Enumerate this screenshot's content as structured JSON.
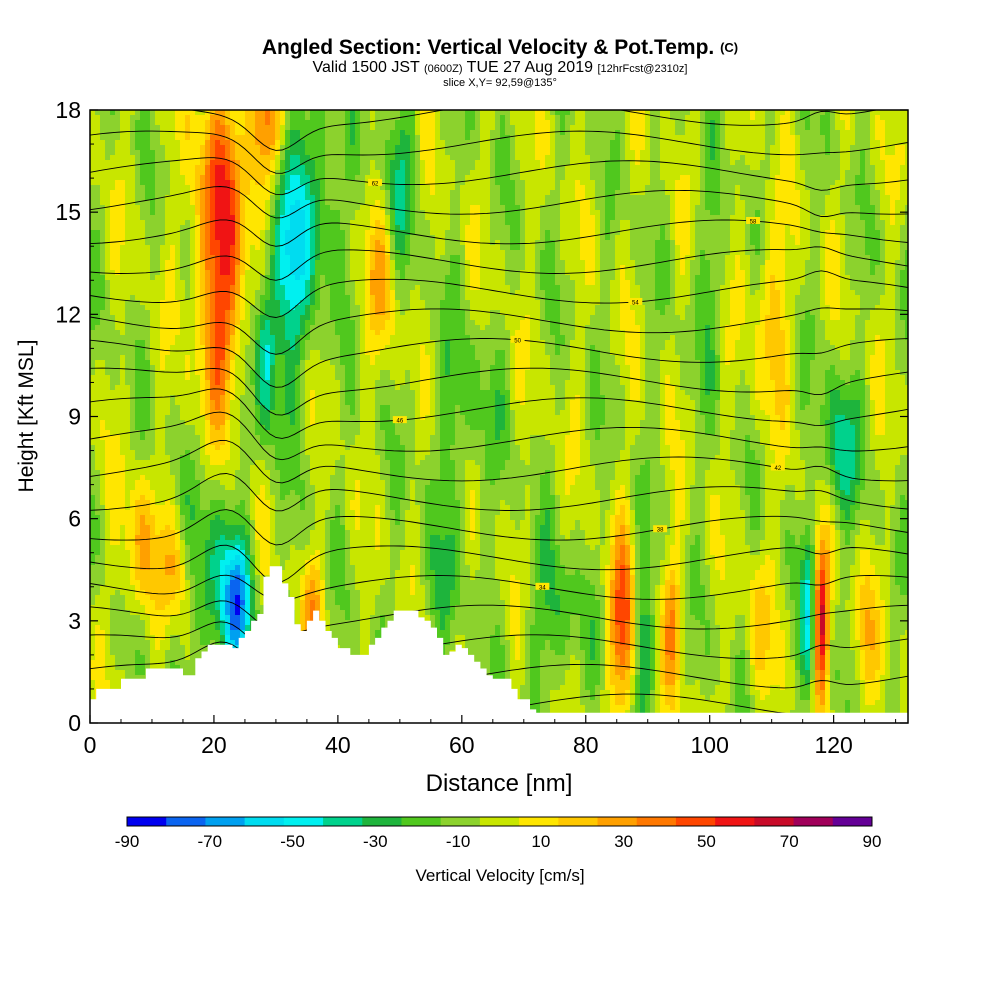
{
  "title": {
    "main": "Angled Section: Vertical Velocity & Pot.Temp.",
    "copyright": "(C)"
  },
  "subtitle": {
    "valid_a": "Valid 1500 JST",
    "utc": "(0600Z)",
    "valid_b": "TUE 27 Aug 2019",
    "forecast": "[12hrFcst@2310z]"
  },
  "slice_label": "slice X,Y= 92,59@135°",
  "chart_data": {
    "type": "heatmap",
    "xlabel": "Distance [nm]",
    "ylabel": "Height [Kft MSL]",
    "xlim": [
      0,
      132
    ],
    "ylim": [
      0,
      18
    ],
    "x_ticks": [
      0,
      20,
      40,
      60,
      80,
      100,
      120
    ],
    "y_ticks": [
      0,
      3,
      6,
      9,
      12,
      15,
      18
    ],
    "colorbar": {
      "label": "Vertical Velocity [cm/s]",
      "tick_labels": [
        -90,
        -70,
        -50,
        -30,
        -10,
        10,
        30,
        50,
        70,
        90
      ],
      "levels": [
        -90,
        -80,
        -70,
        -60,
        -50,
        -40,
        -30,
        -20,
        -10,
        0,
        10,
        20,
        30,
        40,
        50,
        60,
        70,
        80,
        90
      ],
      "colors": [
        "#0000f0",
        "#0a64f0",
        "#00a0f0",
        "#00dcf0",
        "#00f0f0",
        "#00d28c",
        "#1eb43c",
        "#50c81e",
        "#8cd22d",
        "#c8e600",
        "#ffe600",
        "#ffc800",
        "#ffa000",
        "#ff7800",
        "#ff4600",
        "#f01414",
        "#c80a28",
        "#a0005a",
        "#640096"
      ]
    },
    "terrain": {
      "description": "white terrain blocks",
      "x": [
        0,
        1,
        5,
        9,
        13,
        15,
        17,
        18,
        19,
        21,
        23,
        24,
        25,
        26,
        27,
        28,
        29,
        30,
        31,
        32,
        33,
        34,
        35,
        36,
        37,
        38,
        39,
        40,
        41,
        42,
        43,
        44,
        45,
        46,
        47,
        48,
        49,
        50,
        51,
        52,
        53,
        54,
        55,
        56,
        57,
        58,
        59,
        60,
        61,
        62,
        63,
        64,
        65,
        66,
        67,
        68,
        69,
        70,
        71,
        72,
        80,
        90,
        100,
        110,
        120,
        132
      ],
      "height_kft": [
        0.7,
        1.0,
        1.3,
        1.6,
        1.6,
        1.4,
        1.9,
        2.1,
        2.3,
        2.3,
        2.2,
        2.5,
        2.7,
        3.0,
        3.2,
        4.3,
        4.6,
        4.6,
        4.1,
        3.7,
        2.9,
        2.7,
        3.0,
        3.3,
        3.0,
        2.7,
        2.5,
        2.2,
        2.2,
        2.0,
        2.0,
        2.0,
        2.3,
        2.5,
        2.8,
        3.0,
        3.3,
        3.3,
        3.3,
        3.3,
        3.1,
        3.0,
        2.8,
        2.5,
        2.0,
        2.1,
        2.3,
        2.2,
        2.0,
        1.8,
        1.6,
        1.4,
        1.3,
        1.3,
        1.3,
        1.0,
        0.7,
        0.7,
        0.4,
        0.3,
        0.3,
        0.3,
        0.3,
        0.3,
        0.3,
        0.3
      ]
    },
    "theta_contours_C": {
      "base_levels": [
        26,
        28,
        30,
        32,
        34,
        36,
        38,
        40,
        42,
        44,
        46,
        48,
        50,
        52,
        54,
        56,
        58,
        60,
        62,
        64,
        66
      ],
      "contour_labels_visible": [
        "26",
        "30",
        "34",
        "38",
        "42",
        "46",
        "50",
        "54",
        "58",
        "62",
        "66"
      ]
    },
    "velocity_features": [
      {
        "x": 21,
        "y": 15.0,
        "value": 55,
        "sx": 3.0,
        "sy": 2.5
      },
      {
        "x": 21,
        "y": 11.0,
        "value": 35,
        "sx": 2.2,
        "sy": 1.8
      },
      {
        "x": 28,
        "y": 17.5,
        "value": 50,
        "sx": 1.8,
        "sy": 1.6
      },
      {
        "x": 32,
        "y": 13.5,
        "value": -45,
        "sx": 2.2,
        "sy": 2.5
      },
      {
        "x": 28.5,
        "y": 10.8,
        "value": -40,
        "sx": 1.2,
        "sy": 1.6
      },
      {
        "x": 37,
        "y": 15.5,
        "value": -25,
        "sx": 3.0,
        "sy": 2.2
      },
      {
        "x": 24,
        "y": 3.5,
        "value": -55,
        "sx": 1.6,
        "sy": 1.3
      },
      {
        "x": 20,
        "y": 4.0,
        "value": -30,
        "sx": 3.0,
        "sy": 2.0
      },
      {
        "x": 8,
        "y": 5.0,
        "value": 30,
        "sx": 2.0,
        "sy": 1.5
      },
      {
        "x": 14,
        "y": 4.5,
        "value": 25,
        "sx": 1.8,
        "sy": 1.2
      },
      {
        "x": 86,
        "y": 2.8,
        "value": 55,
        "sx": 1.5,
        "sy": 1.8
      },
      {
        "x": 89,
        "y": 2.5,
        "value": -30,
        "sx": 1.2,
        "sy": 1.6
      },
      {
        "x": 94,
        "y": 3.0,
        "value": 35,
        "sx": 1.1,
        "sy": 1.5
      },
      {
        "x": 116,
        "y": 3.0,
        "value": -45,
        "sx": 0.9,
        "sy": 1.6
      },
      {
        "x": 118,
        "y": 3.0,
        "value": 75,
        "sx": 0.9,
        "sy": 1.6
      },
      {
        "x": 121,
        "y": 8.0,
        "value": -35,
        "sx": 2.0,
        "sy": 1.5
      },
      {
        "x": 50,
        "y": 16.0,
        "value": -25,
        "sx": 1.5,
        "sy": 2.0
      },
      {
        "x": 47,
        "y": 13.0,
        "value": 25,
        "sx": 2.0,
        "sy": 1.5
      },
      {
        "x": 110,
        "y": 12.0,
        "value": 25,
        "sx": 2.0,
        "sy": 2.0
      },
      {
        "x": 100,
        "y": 13.0,
        "value": -15,
        "sx": 1.5,
        "sy": 2.0
      },
      {
        "x": 75,
        "y": 3.0,
        "value": -20,
        "sx": 3.0,
        "sy": 1.5
      },
      {
        "x": 60,
        "y": 9.0,
        "value": -15,
        "sx": 4.0,
        "sy": 2.0
      },
      {
        "x": 108,
        "y": 3.0,
        "value": 20,
        "sx": 1.5,
        "sy": 1.5
      },
      {
        "x": 125,
        "y": 2.5,
        "value": 25,
        "sx": 1.2,
        "sy": 1.5
      },
      {
        "x": 36,
        "y": 3.5,
        "value": 30,
        "sx": 1.2,
        "sy": 1.0
      },
      {
        "x": 57,
        "y": 4.0,
        "value": -15,
        "sx": 2.5,
        "sy": 1.5
      }
    ]
  }
}
